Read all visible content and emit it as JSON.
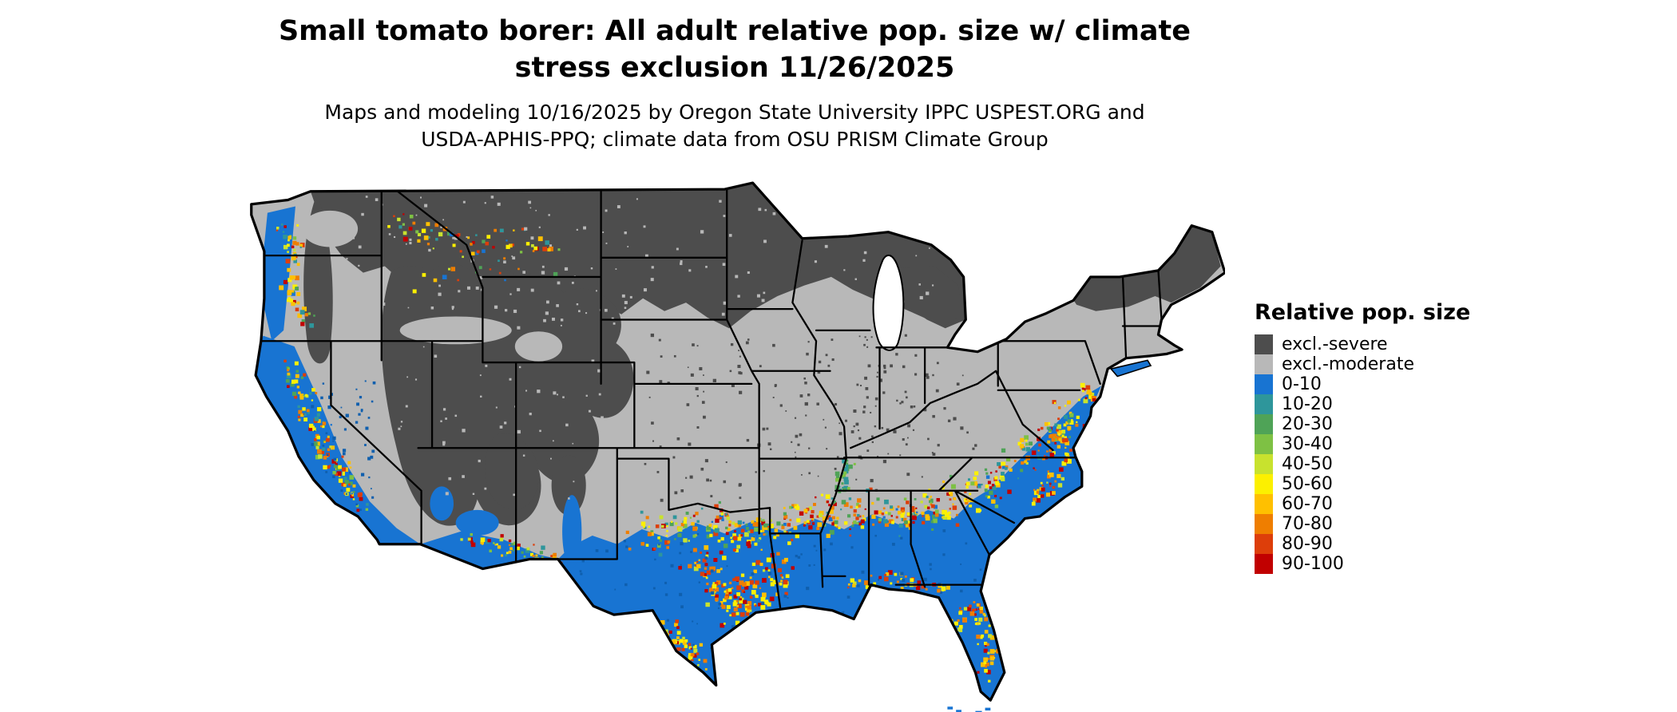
{
  "title": {
    "line1": "Small tomato borer: All adult relative pop. size w/ climate",
    "line2": "stress exclusion 11/26/2025"
  },
  "subtitle": {
    "line1": "Maps and modeling 10/16/2025 by Oregon State University IPPC USPEST.ORG and",
    "line2": "USDA-APHIS-PPQ; climate data from OSU PRISM Climate Group"
  },
  "legend": {
    "title": "Relative pop. size",
    "items": [
      {
        "label": "excl.-severe",
        "color": "#4D4D4D"
      },
      {
        "label": "excl.-moderate",
        "color": "#B8B8B8"
      },
      {
        "label": "0-10",
        "color": "#1874D2"
      },
      {
        "label": "10-20",
        "color": "#2E969B"
      },
      {
        "label": "20-30",
        "color": "#4FA357"
      },
      {
        "label": "30-40",
        "color": "#7EC144"
      },
      {
        "label": "40-50",
        "color": "#C8E22E"
      },
      {
        "label": "50-60",
        "color": "#FCF000"
      },
      {
        "label": "60-70",
        "color": "#FFC000"
      },
      {
        "label": "70-80",
        "color": "#EF7E00"
      },
      {
        "label": "80-90",
        "color": "#DD3E0A"
      },
      {
        "label": "90-100",
        "color": "#C10000"
      }
    ]
  },
  "map": {
    "region_label": "contiguous United States",
    "background_color": "#FFFFFF",
    "boundary_color": "#000000"
  }
}
